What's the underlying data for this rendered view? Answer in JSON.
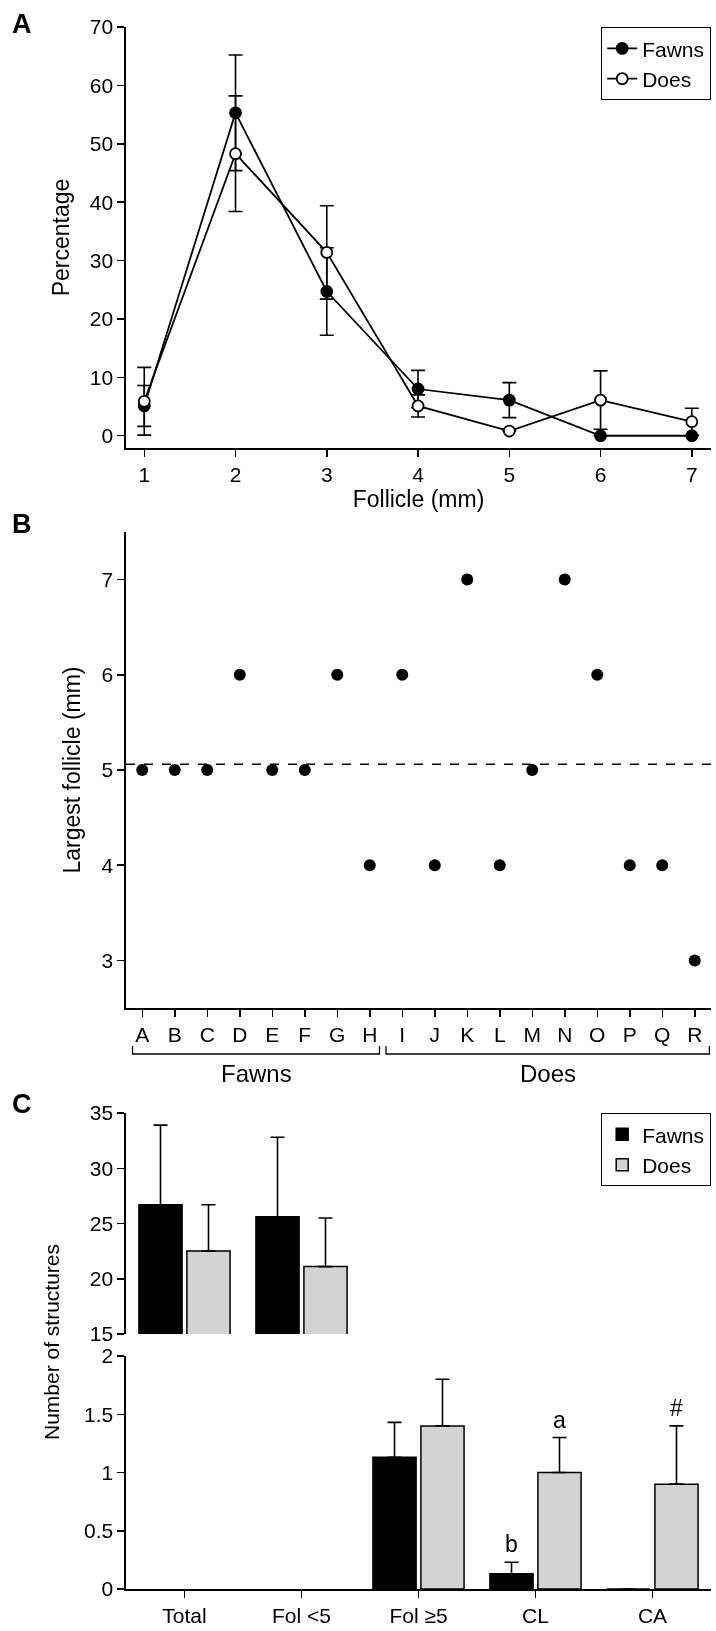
{
  "chart_data": [
    {
      "type": "line",
      "title": "A",
      "xlabel": "Follicle (mm)",
      "ylabel": "Percentage",
      "x": [
        1,
        2,
        3,
        4,
        5,
        6,
        7
      ],
      "xlim": [
        0.8,
        7.21
      ],
      "xticks": [
        1,
        2,
        3,
        4,
        5,
        6,
        7
      ],
      "ylim": [
        -2.1,
        70
      ],
      "yticks": [
        0,
        10,
        20,
        30,
        40,
        50,
        60,
        70
      ],
      "legend": "top right",
      "marker": "circle",
      "line_style": "solid",
      "series": [
        {
          "name": "Fawns",
          "color": "#000000",
          "values": [
            5.1,
            55.3,
            24.7,
            8,
            6.1,
            0,
            0
          ],
          "errors": [
            3.5,
            9.9,
            7.5,
            3.2,
            3,
            null,
            null
          ]
        },
        {
          "name": "Does",
          "color": "#000000",
          "marker": "circle-open",
          "values": [
            5.9,
            48.3,
            31.4,
            5.1,
            0.8,
            6.1,
            2.4
          ],
          "errors": [
            5.8,
            9.9,
            8,
            1.9,
            null,
            5,
            2.3
          ]
        }
      ]
    },
    {
      "type": "scatter",
      "title": "B",
      "ylabel": "Largest follicle (mm)",
      "categories": [
        "A",
        "B",
        "C",
        "D",
        "E",
        "F",
        "G",
        "H",
        "I",
        "J",
        "K",
        "L",
        "M",
        "N",
        "O",
        "P",
        "Q",
        "R"
      ],
      "values": [
        5,
        5,
        5,
        6,
        5,
        5,
        6,
        4,
        6,
        4,
        7,
        4,
        5,
        7,
        6,
        4,
        4,
        3
      ],
      "color": "#000000",
      "marker": "circle",
      "ylim": [
        2.5,
        7.5
      ],
      "yticks": [
        3,
        4,
        5,
        6,
        7
      ],
      "ref_lines": [
        {
          "axis": "y",
          "value": 5.06,
          "line_style": "dashed",
          "color": "#000000"
        }
      ],
      "annotations": [
        "Fawns",
        "Does"
      ]
    },
    {
      "type": "bar",
      "title": "C",
      "categories": [
        "Total",
        "Fol <5",
        "Fol ≥5",
        "CL",
        "CA"
      ],
      "ylim": [
        15,
        35
      ],
      "yticks": [
        15,
        20,
        25,
        30,
        35
      ],
      "tick_labels": "y",
      "legend": "top right",
      "series": [
        {
          "name": "Fawns",
          "color": "#000000",
          "values": [
            26.7,
            25.6,
            null,
            null,
            null
          ],
          "errors": [
            [
              26.7,
              33.9
            ],
            [
              25.6,
              32.8
            ],
            null,
            null,
            null
          ]
        },
        {
          "name": "Does",
          "color": "#d3d3d3",
          "values": [
            22.5,
            21.1,
            null,
            null,
            null
          ],
          "errors": [
            [
              22.5,
              26.7
            ],
            [
              21.1,
              25.5
            ],
            null,
            null,
            null
          ]
        }
      ]
    },
    {
      "type": "bar",
      "ylabel": "Number of structures",
      "categories": [
        "Total",
        "Fol <5",
        "Fol ≥5",
        "CL",
        "CA"
      ],
      "ylim": [
        0,
        2
      ],
      "yticks": [
        0,
        0.5,
        1,
        1.5,
        2
      ],
      "series": [
        {
          "color": "#000000",
          "values": [
            null,
            null,
            1.13,
            0.13,
            0
          ],
          "errors": [
            null,
            null,
            [
              1.13,
              1.43
            ],
            [
              0.13,
              0.23
            ],
            null
          ]
        },
        {
          "color": "#d3d3d3",
          "values": [
            null,
            null,
            1.4,
            1.0,
            0.9
          ],
          "errors": [
            null,
            null,
            [
              1.4,
              1.8
            ],
            [
              1.0,
              1.3
            ],
            [
              0.9,
              1.4
            ]
          ]
        }
      ],
      "annotations": [
        {
          "text": "b",
          "x": "CL",
          "y": 0.13
        },
        {
          "text": "a",
          "x": "CL",
          "y": 1.0
        },
        {
          "text": "#",
          "x": "CA",
          "y": 0.9
        }
      ]
    }
  ]
}
